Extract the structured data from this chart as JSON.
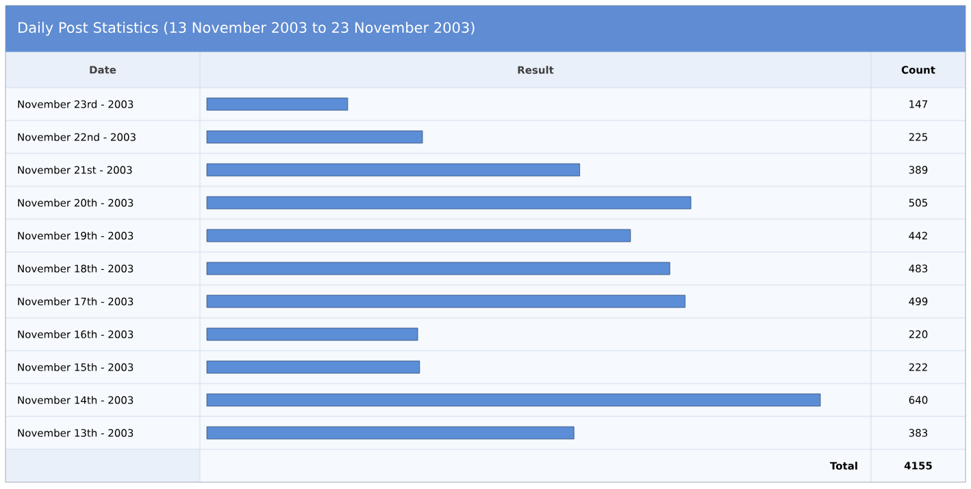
{
  "chart_data": {
    "type": "bar",
    "orientation": "horizontal",
    "title": "Daily Post Statistics (13 November 2003 to 23 November 2003)",
    "ylabel": "Date",
    "xlabel": "Result",
    "categories": [
      "November 23rd - 2003",
      "November 22nd - 2003",
      "November 21st - 2003",
      "November 20th - 2003",
      "November 19th - 2003",
      "November 18th - 2003",
      "November 17th - 2003",
      "November 16th - 2003",
      "November 15th - 2003",
      "November 14th - 2003",
      "November 13th - 2003"
    ],
    "values": [
      147,
      225,
      389,
      505,
      442,
      483,
      499,
      220,
      222,
      640,
      383
    ],
    "color": "#5b8ed6",
    "data_labels": true,
    "annotations": [
      "Count",
      "Total",
      "4155"
    ]
  }
}
